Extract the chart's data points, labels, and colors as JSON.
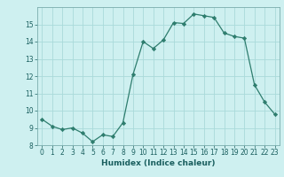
{
  "x": [
    0,
    1,
    2,
    3,
    4,
    5,
    6,
    7,
    8,
    9,
    10,
    11,
    12,
    13,
    14,
    15,
    16,
    17,
    18,
    19,
    20,
    21,
    22,
    23
  ],
  "y": [
    9.5,
    9.1,
    8.9,
    9.0,
    8.7,
    8.2,
    8.6,
    8.5,
    9.3,
    12.1,
    14.0,
    13.6,
    14.1,
    15.1,
    15.05,
    15.6,
    15.5,
    15.4,
    14.5,
    14.3,
    14.2,
    11.5,
    10.5,
    9.8
  ],
  "xlabel": "Humidex (Indice chaleur)",
  "xlim": [
    -0.5,
    23.5
  ],
  "ylim": [
    8,
    16
  ],
  "yticks": [
    8,
    9,
    10,
    11,
    12,
    13,
    14,
    15
  ],
  "xticks": [
    0,
    1,
    2,
    3,
    4,
    5,
    6,
    7,
    8,
    9,
    10,
    11,
    12,
    13,
    14,
    15,
    16,
    17,
    18,
    19,
    20,
    21,
    22,
    23
  ],
  "line_color": "#2e7d6e",
  "marker": "D",
  "marker_size": 2.2,
  "bg_color": "#cef0f0",
  "grid_color": "#aadada",
  "tick_fontsize": 5.5,
  "xlabel_fontsize": 6.5,
  "line_width": 0.9
}
